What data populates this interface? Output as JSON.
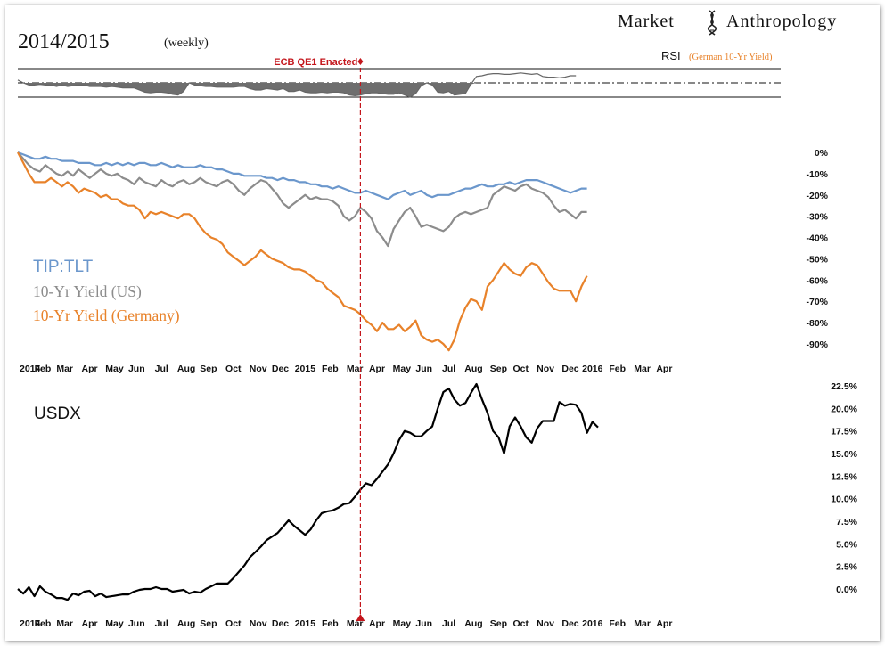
{
  "header": {
    "title": "2014/2015",
    "subtitle": "(weekly)",
    "brand_left": "Market",
    "brand_right": "Anthropology"
  },
  "colors": {
    "tip_tlt": "#6b97cc",
    "yield_us": "#8c8c8c",
    "yield_germany": "#e8822a",
    "usdx": "#000000",
    "rsi_label": "#e8822a",
    "event": "#c4161c",
    "rsi_fill": "#6e6e6e"
  },
  "chart_data": [
    {
      "name": "rsi",
      "type": "line",
      "label": "RSI",
      "label_note": "(German 10-Yr Yield)",
      "ylim": [
        0,
        100
      ],
      "bands": [
        70,
        50,
        30
      ],
      "values": [
        54,
        50,
        47,
        47,
        48,
        47,
        47,
        45,
        47,
        45,
        46,
        47,
        47,
        45,
        45,
        45,
        44,
        45,
        44,
        43,
        43,
        43,
        40,
        37,
        36,
        37,
        37,
        36,
        34,
        33,
        38,
        50,
        47,
        46,
        45,
        45,
        44,
        44,
        44,
        44,
        45,
        45,
        42,
        40,
        40,
        42,
        41,
        40,
        42,
        38,
        38,
        40,
        37,
        36,
        36,
        37,
        36,
        37,
        37,
        36,
        33,
        32,
        33,
        35,
        36,
        36,
        35,
        34,
        34,
        36,
        33,
        30,
        35,
        46,
        50,
        47,
        37,
        36,
        38,
        33,
        34,
        35,
        48,
        59,
        60,
        62,
        63,
        63,
        62,
        62,
        63,
        64,
        63,
        62,
        63,
        59,
        58,
        58,
        57,
        58,
        60,
        60
      ]
    },
    {
      "name": "relative-performance",
      "type": "line",
      "ylim": [
        -100,
        5
      ],
      "yticks": [
        "0%",
        "-10%",
        "-20%",
        "-30%",
        "-40%",
        "-50%",
        "-60%",
        "-70%",
        "-80%",
        "-90%"
      ],
      "series": [
        {
          "name": "TIP:TLT",
          "values": [
            0,
            -1,
            -2,
            -3,
            -3,
            -2,
            -3,
            -3,
            -4,
            -4,
            -4,
            -5,
            -5,
            -5,
            -6,
            -6,
            -5,
            -6,
            -5,
            -6,
            -5,
            -6,
            -5,
            -5,
            -6,
            -6,
            -5,
            -6,
            -7,
            -6,
            -7,
            -7,
            -7,
            -6,
            -7,
            -7,
            -8,
            -8,
            -9,
            -10,
            -10,
            -11,
            -11,
            -11,
            -11,
            -12,
            -12,
            -13,
            -12,
            -13,
            -13,
            -14,
            -14,
            -15,
            -15,
            -16,
            -16,
            -17,
            -16,
            -17,
            -18,
            -19,
            -19,
            -18,
            -19,
            -20,
            -21,
            -22,
            -20,
            -19,
            -18,
            -20,
            -19,
            -18,
            -20,
            -21,
            -20,
            -20,
            -20,
            -19,
            -18,
            -17,
            -17,
            -16,
            -15,
            -16,
            -16,
            -15,
            -15,
            -14,
            -15,
            -14,
            -13,
            -13,
            -13,
            -14,
            -15,
            -16,
            -17,
            -18,
            -19,
            -18,
            -17,
            -17
          ]
        },
        {
          "name": "10-Yr Yield (US)",
          "values": [
            0,
            -3,
            -6,
            -8,
            -9,
            -6,
            -8,
            -10,
            -11,
            -9,
            -11,
            -8,
            -10,
            -12,
            -10,
            -8,
            -10,
            -11,
            -10,
            -12,
            -13,
            -15,
            -12,
            -14,
            -15,
            -16,
            -13,
            -15,
            -16,
            -14,
            -13,
            -15,
            -14,
            -12,
            -14,
            -15,
            -16,
            -14,
            -13,
            -15,
            -18,
            -20,
            -17,
            -15,
            -13,
            -14,
            -17,
            -20,
            -24,
            -26,
            -24,
            -22,
            -20,
            -22,
            -21,
            -22,
            -22,
            -23,
            -25,
            -30,
            -32,
            -30,
            -26,
            -28,
            -31,
            -37,
            -40,
            -44,
            -36,
            -32,
            -28,
            -26,
            -30,
            -35,
            -34,
            -35,
            -36,
            -37,
            -35,
            -31,
            -29,
            -28,
            -29,
            -28,
            -27,
            -26,
            -20,
            -18,
            -16,
            -17,
            -18,
            -16,
            -15,
            -17,
            -18,
            -19,
            -21,
            -25,
            -28,
            -27,
            -29,
            -31,
            -28,
            -28
          ]
        },
        {
          "name": "10-Yr Yield (Germany)",
          "values": [
            0,
            -5,
            -10,
            -14,
            -14,
            -14,
            -12,
            -14,
            -16,
            -14,
            -16,
            -19,
            -17,
            -18,
            -19,
            -21,
            -20,
            -22,
            -22,
            -24,
            -25,
            -25,
            -27,
            -31,
            -28,
            -29,
            -28,
            -29,
            -30,
            -31,
            -29,
            -29,
            -31,
            -35,
            -38,
            -40,
            -41,
            -43,
            -47,
            -49,
            -51,
            -53,
            -51,
            -49,
            -46,
            -48,
            -50,
            -51,
            -52,
            -54,
            -55,
            -55,
            -56,
            -58,
            -60,
            -61,
            -64,
            -66,
            -68,
            -72,
            -73,
            -74,
            -76,
            -79,
            -81,
            -84,
            -80,
            -83,
            -83,
            -81,
            -84,
            -82,
            -79,
            -86,
            -88,
            -89,
            -88,
            -90,
            -93,
            -88,
            -79,
            -73,
            -69,
            -70,
            -74,
            -63,
            -60,
            -56,
            -52,
            -55,
            -57,
            -58,
            -54,
            -52,
            -53,
            -57,
            -61,
            -64,
            -65,
            -65,
            -65,
            -70,
            -63,
            -58
          ]
        }
      ]
    },
    {
      "name": "usdx",
      "type": "line",
      "label": "USDX",
      "ylim": [
        -1,
        22.5
      ],
      "yticks": [
        "22.5%",
        "20.0%",
        "17.5%",
        "15.0%",
        "12.5%",
        "10.0%",
        "7.5%",
        "5.0%",
        "2.5%",
        "0.0%"
      ],
      "values": [
        0.0,
        -0.5,
        0.2,
        -0.8,
        0.3,
        -0.3,
        -0.6,
        -1.0,
        -1.0,
        -1.2,
        -0.5,
        -0.7,
        -0.3,
        -0.2,
        -0.8,
        -0.5,
        -0.9,
        -0.8,
        -0.7,
        -0.6,
        -0.6,
        -0.3,
        -0.1,
        0.0,
        0.0,
        0.2,
        0.0,
        0.0,
        -0.3,
        -0.2,
        -0.1,
        -0.5,
        -0.3,
        -0.4,
        0.0,
        0.3,
        0.6,
        0.6,
        0.6,
        1.2,
        1.9,
        2.6,
        3.5,
        4.1,
        4.7,
        5.4,
        5.8,
        6.2,
        6.9,
        7.6,
        7.0,
        6.5,
        6.0,
        6.6,
        7.6,
        8.4,
        8.6,
        8.7,
        9.0,
        9.4,
        9.5,
        10.2,
        11.0,
        11.7,
        11.5,
        12.2,
        13.0,
        13.8,
        15.0,
        16.5,
        17.5,
        17.3,
        16.9,
        16.9,
        17.5,
        18.0,
        20.0,
        21.8,
        22.2,
        21.0,
        20.3,
        20.6,
        21.7,
        22.7,
        21.0,
        19.5,
        17.5,
        16.8,
        15.0,
        18.0,
        19.0,
        18.0,
        16.8,
        16.2,
        17.8,
        18.6,
        18.6,
        18.6,
        20.7,
        20.3,
        20.5,
        20.4,
        19.5,
        17.3,
        18.5,
        17.9
      ]
    }
  ],
  "x_axis": {
    "labels": [
      "2014",
      "Feb",
      "Mar",
      "Apr",
      "May",
      "Jun",
      "Jul",
      "Aug",
      "Sep",
      "Oct",
      "Nov",
      "Dec",
      "2015",
      "Feb",
      "Mar",
      "Apr",
      "May",
      "Jun",
      "Jul",
      "Aug",
      "Sep",
      "Oct",
      "Nov",
      "Dec",
      "2016",
      "Feb",
      "Mar",
      "Apr"
    ],
    "week_index": [
      0,
      4.5,
      8.5,
      13,
      17.5,
      21.5,
      26,
      30.5,
      34.5,
      39,
      43.5,
      47.5,
      52,
      56.5,
      61,
      65,
      69.5,
      73.5,
      78,
      82.5,
      87,
      91,
      95.5,
      100,
      104,
      108.5,
      113,
      117
    ]
  },
  "event": {
    "label": "ECB QE1 Enacted",
    "week_index": 62
  }
}
